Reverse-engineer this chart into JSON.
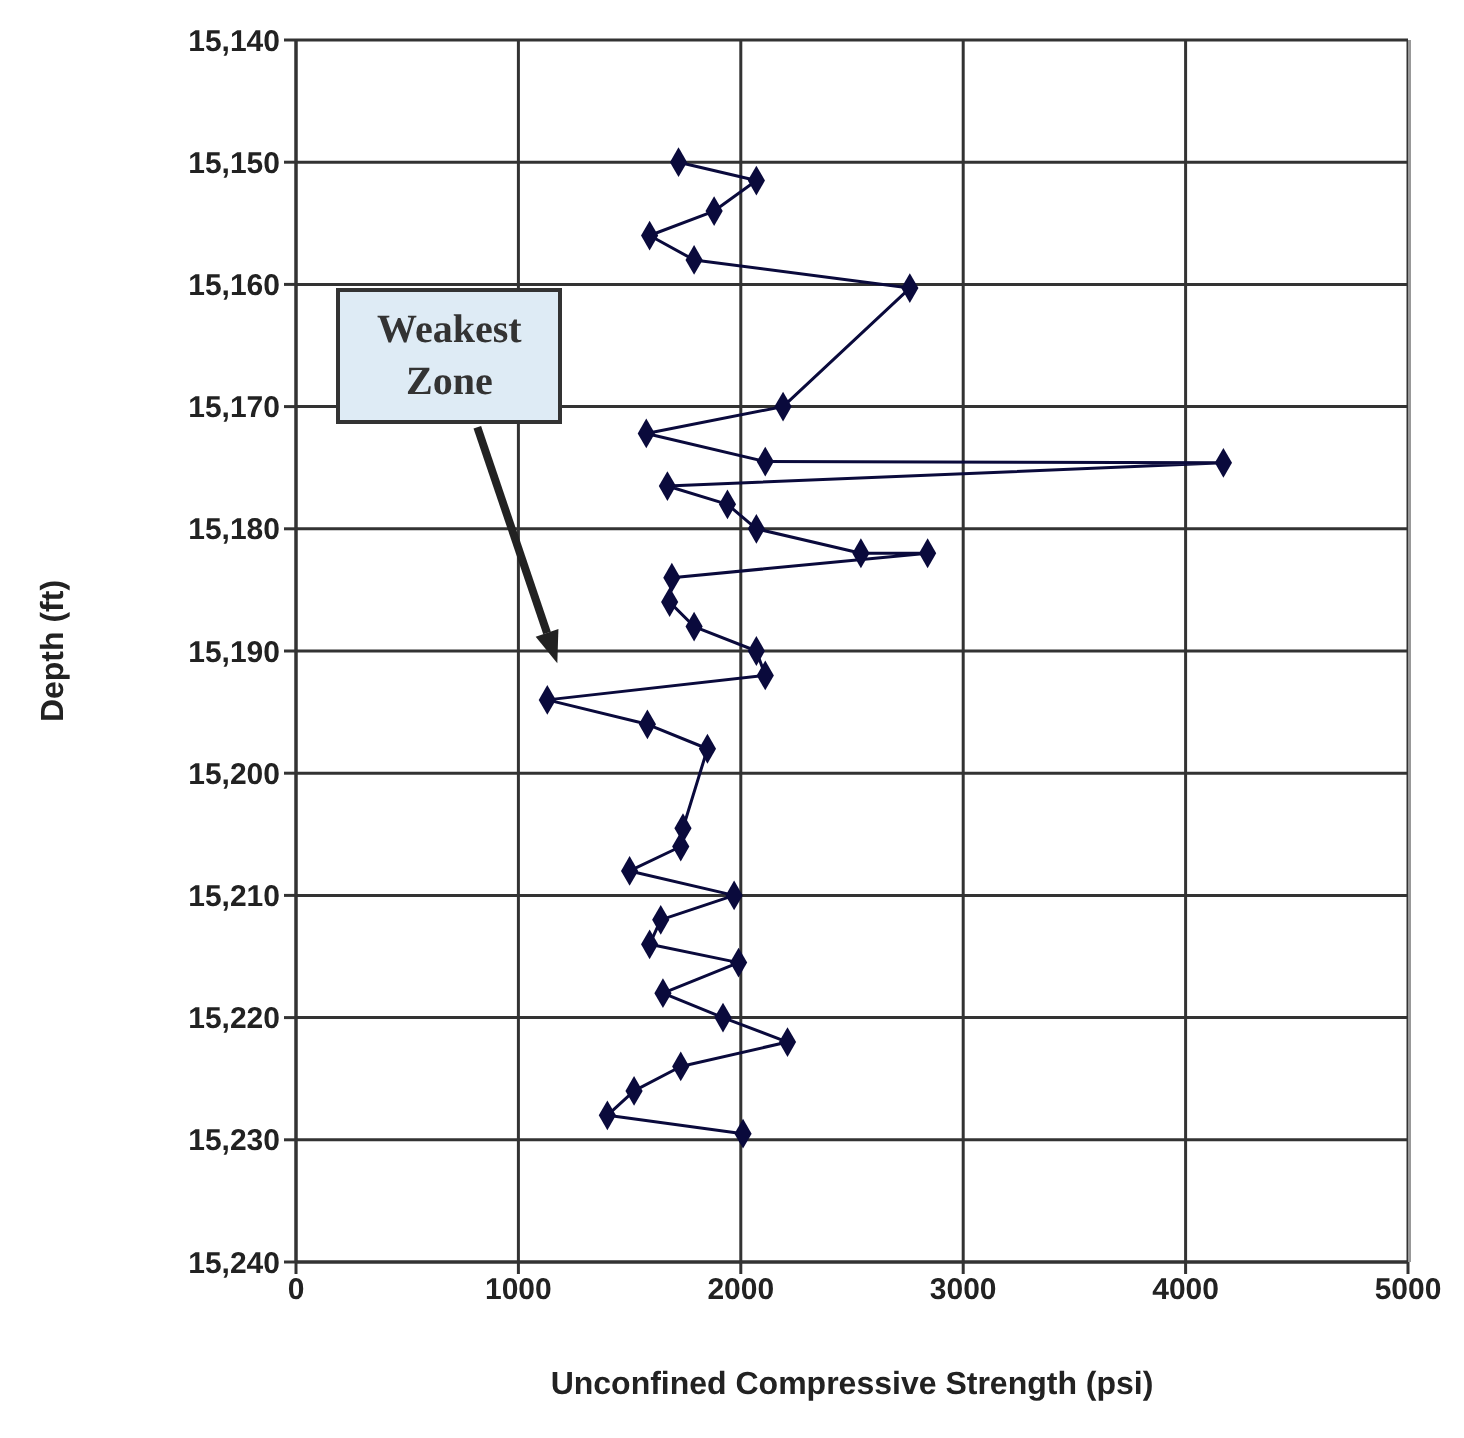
{
  "chart_data": {
    "type": "line",
    "xlabel": "Unconfined Compressive Strength (psi)",
    "ylabel": "Depth (ft)",
    "xlim": [
      0,
      5000
    ],
    "xticks": [
      0,
      1000,
      2000,
      3000,
      4000,
      5000
    ],
    "ylim": [
      15240,
      15140
    ],
    "yticks": [
      {
        "value": 15140,
        "label": "15,140"
      },
      {
        "value": 15150,
        "label": "15,150"
      },
      {
        "value": 15160,
        "label": "15,160"
      },
      {
        "value": 15170,
        "label": "15,170"
      },
      {
        "value": 15180,
        "label": "15,180"
      },
      {
        "value": 15190,
        "label": "15,190"
      },
      {
        "value": 15200,
        "label": "15,200"
      },
      {
        "value": 15210,
        "label": "15,210"
      },
      {
        "value": 15220,
        "label": "15,220"
      },
      {
        "value": 15230,
        "label": "15,230"
      },
      {
        "value": 15240,
        "label": "15,240"
      }
    ],
    "grid": true,
    "marker": "diamond",
    "line_style": "solid",
    "series": [
      {
        "color": "#0a0a3c",
        "x": [
          1720,
          2070,
          1880,
          1590,
          1790,
          2760,
          2190,
          1575,
          2110,
          4170,
          1670,
          1940,
          2070,
          2540,
          2840,
          1690,
          1680,
          1790,
          2070,
          2110,
          1130,
          1580,
          1850,
          1740,
          1730,
          1500,
          1970,
          1640,
          1590,
          1990,
          1650,
          1920,
          2210,
          1730,
          1520,
          1400,
          2010
        ],
        "values": [
          15150,
          15151.5,
          15154,
          15156,
          15158,
          15160.3,
          15170,
          15172.2,
          15174.5,
          15174.6,
          15176.5,
          15178,
          15180,
          15182,
          15182,
          15184,
          15186,
          15188,
          15190,
          15192,
          15194,
          15196,
          15198,
          15204.5,
          15206,
          15208,
          15210,
          15212,
          15214,
          15215.5,
          15218,
          15220,
          15222,
          15224,
          15226,
          15228,
          15229.5
        ]
      }
    ],
    "annotations": [
      "Weakest Zone"
    ]
  }
}
